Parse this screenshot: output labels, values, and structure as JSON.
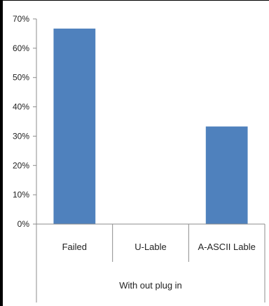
{
  "chart_data": {
    "type": "bar",
    "categories": [
      "Failed",
      "U-Lable",
      "A-ASCII Lable"
    ],
    "group_label": "With out plug in",
    "values": [
      66.7,
      0,
      33.3
    ],
    "y_ticks": [
      "0%",
      "10%",
      "20%",
      "30%",
      "40%",
      "50%",
      "60%",
      "70%"
    ],
    "ylim": [
      0,
      70
    ],
    "title": "",
    "xlabel": "",
    "ylabel": "",
    "bar_color": "#4f81bd",
    "grid": false,
    "legend": "none"
  }
}
